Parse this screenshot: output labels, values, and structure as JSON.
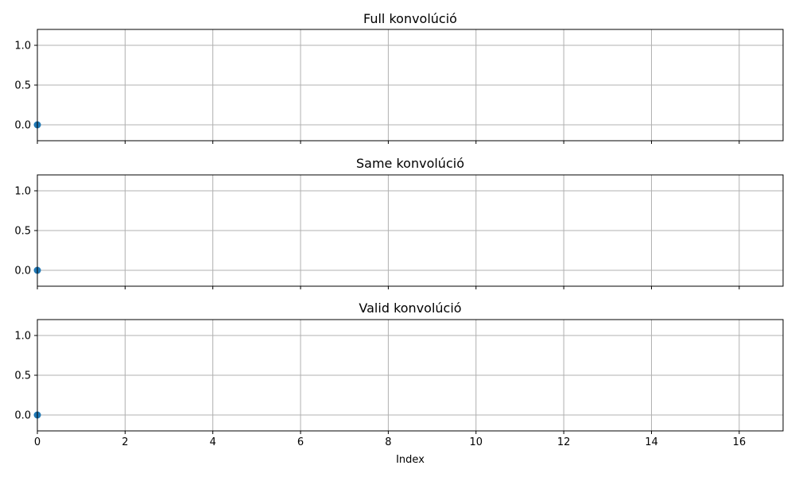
{
  "chart_data": [
    {
      "type": "scatter",
      "title": "Full konvolúció",
      "xlabel": "",
      "ylabel": "",
      "xlim": [
        0,
        17
      ],
      "ylim": [
        -0.2,
        1.2
      ],
      "xticks": [
        0,
        2,
        4,
        6,
        8,
        10,
        12,
        14,
        16
      ],
      "yticks": [
        "0.0",
        "0.5",
        "1.0"
      ],
      "show_xtick_labels": false,
      "grid": true,
      "series": [
        {
          "x": [
            0
          ],
          "y": [
            0
          ],
          "color": "#1f77b4"
        }
      ]
    },
    {
      "type": "scatter",
      "title": "Same konvolúció",
      "xlabel": "",
      "ylabel": "",
      "xlim": [
        0,
        17
      ],
      "ylim": [
        -0.2,
        1.2
      ],
      "xticks": [
        0,
        2,
        4,
        6,
        8,
        10,
        12,
        14,
        16
      ],
      "yticks": [
        "0.0",
        "0.5",
        "1.0"
      ],
      "show_xtick_labels": false,
      "grid": true,
      "series": [
        {
          "x": [
            0
          ],
          "y": [
            0
          ],
          "color": "#1f77b4"
        }
      ]
    },
    {
      "type": "scatter",
      "title": "Valid konvolúció",
      "xlabel": "Index",
      "ylabel": "",
      "xlim": [
        0,
        17
      ],
      "ylim": [
        -0.2,
        1.2
      ],
      "xticks": [
        0,
        2,
        4,
        6,
        8,
        10,
        12,
        14,
        16
      ],
      "yticks": [
        "0.0",
        "0.5",
        "1.0"
      ],
      "show_xtick_labels": true,
      "grid": true,
      "series": [
        {
          "x": [
            0
          ],
          "y": [
            0
          ],
          "color": "#1f77b4"
        }
      ]
    }
  ]
}
